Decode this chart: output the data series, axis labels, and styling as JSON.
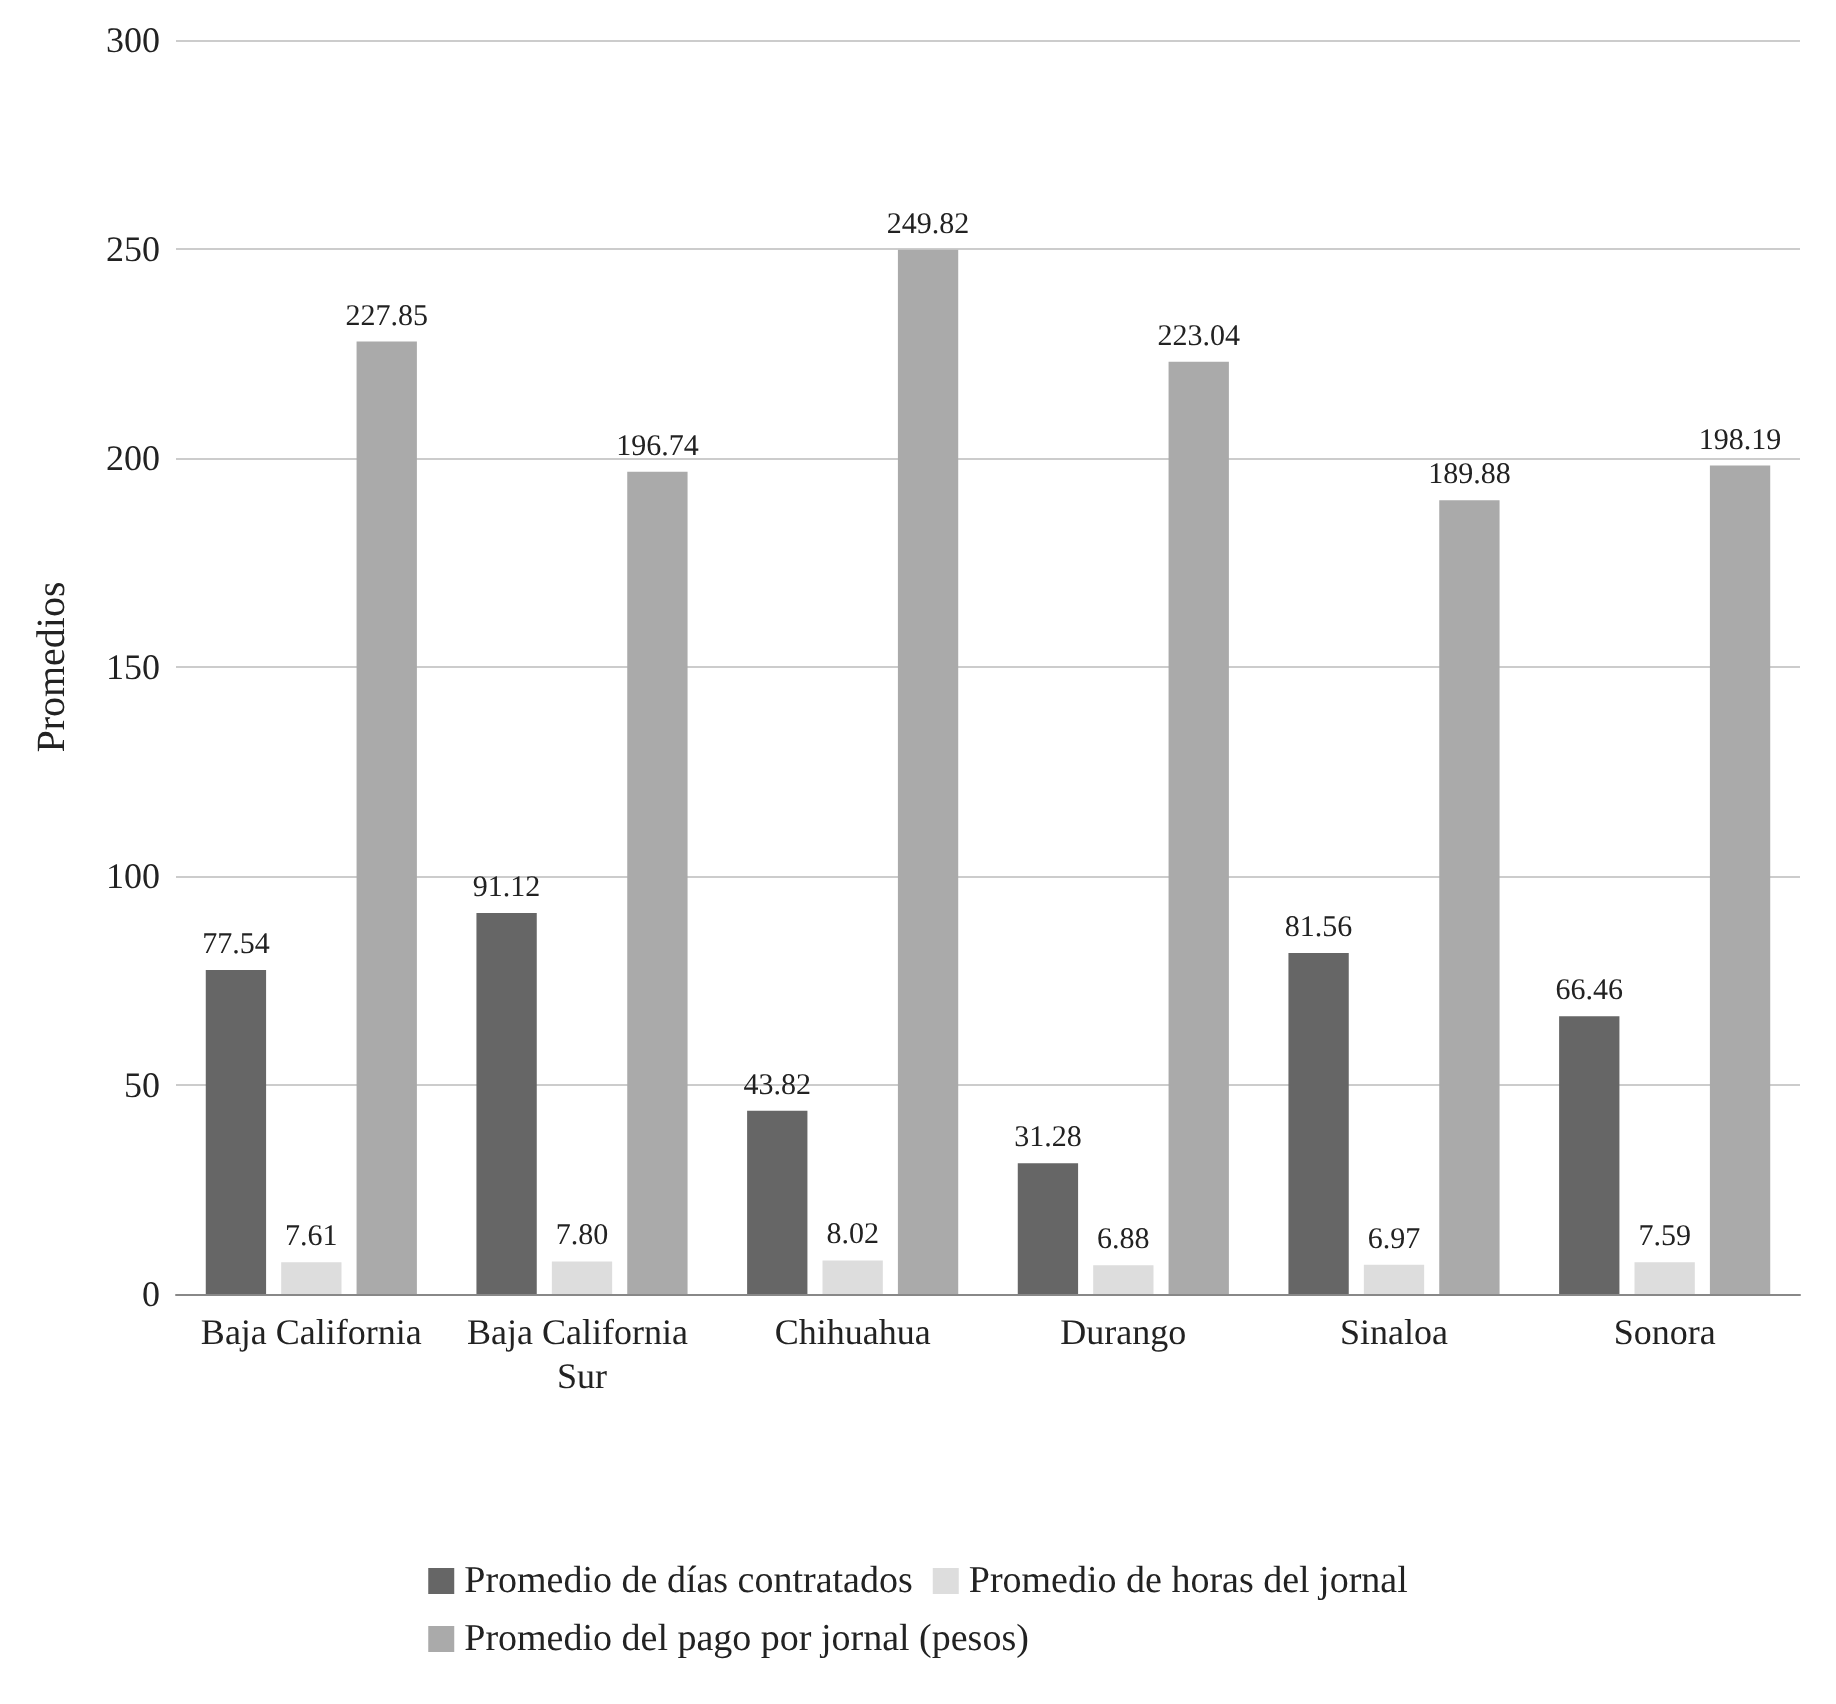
{
  "chart_data": {
    "type": "bar",
    "ylabel": "Promedios",
    "categories": [
      "Baja California",
      "Baja California Sur",
      "Chihuahua",
      "Durango",
      "Sinaloa",
      "Sonora"
    ],
    "series": [
      {
        "name": "Promedio de días contratados",
        "color": "#666666",
        "values": [
          77.54,
          91.12,
          43.82,
          31.28,
          81.56,
          66.46
        ],
        "value_labels": [
          "77.54",
          "91.12",
          "43.82",
          "31.28",
          "81.56",
          "66.46"
        ]
      },
      {
        "name": "Promedio de horas del jornal",
        "color": "#dddddd",
        "values": [
          7.61,
          7.8,
          8.02,
          6.88,
          6.97,
          7.59
        ],
        "value_labels": [
          "7.61",
          "7.80",
          "8.02",
          "6.88",
          "6.97",
          "7.59"
        ]
      },
      {
        "name": "Promedio del pago por jornal (pesos)",
        "color": "#aaaaaa",
        "values": [
          227.85,
          196.74,
          249.82,
          223.04,
          189.88,
          198.19
        ],
        "value_labels": [
          "227.85",
          "196.74",
          "249.82",
          "223.04",
          "189.88",
          "198.19"
        ]
      }
    ],
    "ylim": [
      0,
      300
    ],
    "yticks": [
      0,
      50,
      100,
      150,
      200,
      250,
      300
    ],
    "grid": "y",
    "legend": "bottom"
  }
}
